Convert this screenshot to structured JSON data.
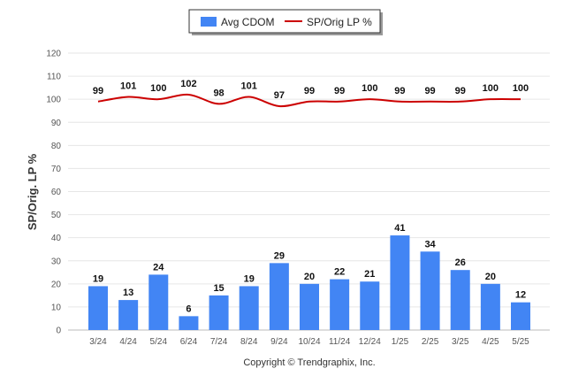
{
  "chart_data": {
    "type": "bar",
    "categories": [
      "3/24",
      "4/24",
      "5/24",
      "6/24",
      "7/24",
      "8/24",
      "9/24",
      "10/24",
      "11/24",
      "12/24",
      "1/25",
      "2/25",
      "3/25",
      "4/25",
      "5/25"
    ],
    "series": [
      {
        "name": "Avg CDOM",
        "type": "bar",
        "color": "#4285f4",
        "values": [
          19,
          13,
          24,
          6,
          15,
          19,
          29,
          20,
          22,
          21,
          41,
          34,
          26,
          20,
          12
        ]
      },
      {
        "name": "SP/Orig LP %",
        "type": "line",
        "color": "#cc0000",
        "values": [
          99,
          101,
          100,
          102,
          98,
          101,
          97,
          99,
          99,
          100,
          99,
          99,
          99,
          100,
          100
        ]
      }
    ],
    "ylabel": "SP/Orig. LP %",
    "xlabel": "",
    "ylim": [
      0,
      120
    ],
    "yticks": [
      0,
      10,
      20,
      30,
      40,
      50,
      60,
      70,
      80,
      90,
      100,
      110,
      120
    ],
    "grid": true,
    "legend_position": "top-center"
  },
  "footer": {
    "copyright": "Copyright © Trendgraphix, Inc."
  }
}
